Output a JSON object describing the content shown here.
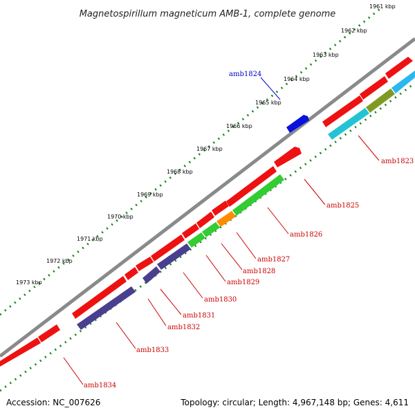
{
  "title": "Magnetospirillum magneticum AMB-1, complete genome",
  "footer": {
    "accession": "Accession: NC_007626",
    "summary": "Topology: circular; Length: 4,967,148 bp; Genes: 4,611"
  },
  "ticks": [
    {
      "label": "1961 kbp"
    },
    {
      "label": "1962 kbp"
    },
    {
      "label": "1963 kbp"
    },
    {
      "label": "1964 kbp"
    },
    {
      "label": "1965 kbp"
    },
    {
      "label": "1966 kbp"
    },
    {
      "label": "1967 kbp"
    },
    {
      "label": "1968 kbp"
    },
    {
      "label": "1969 kbp"
    },
    {
      "label": "1970 kbp"
    },
    {
      "label": "1971 kbp"
    },
    {
      "label": "1972 kbp"
    },
    {
      "label": "1973 kbp"
    }
  ],
  "labels": [
    {
      "text": "amb1824",
      "color": "#0000cc"
    },
    {
      "text": "amb1823",
      "color": "#cc0000"
    },
    {
      "text": "amb1825",
      "color": "#cc0000"
    },
    {
      "text": "amb1826",
      "color": "#cc0000"
    },
    {
      "text": "amb1827",
      "color": "#cc0000"
    },
    {
      "text": "amb1828",
      "color": "#cc0000"
    },
    {
      "text": "amb1829",
      "color": "#cc0000"
    },
    {
      "text": "amb1830",
      "color": "#cc0000"
    },
    {
      "text": "amb1831",
      "color": "#cc0000"
    },
    {
      "text": "amb1832",
      "color": "#cc0000"
    },
    {
      "text": "amb1833",
      "color": "#cc0000"
    },
    {
      "text": "amb1834",
      "color": "#cc0000"
    }
  ],
  "colors": {
    "backbone": "#8a8a8a",
    "gene_red": "#ee1111",
    "gene_blue": "#0a12dd",
    "gene_cyan": "#22c4d4",
    "gene_sky": "#29b8f0",
    "gene_olive": "#7f9a22",
    "gene_green": "#33cc33",
    "gene_orange": "#ff8c00",
    "gene_purple": "#4a3f8f",
    "tick": "#1a7f1a"
  }
}
